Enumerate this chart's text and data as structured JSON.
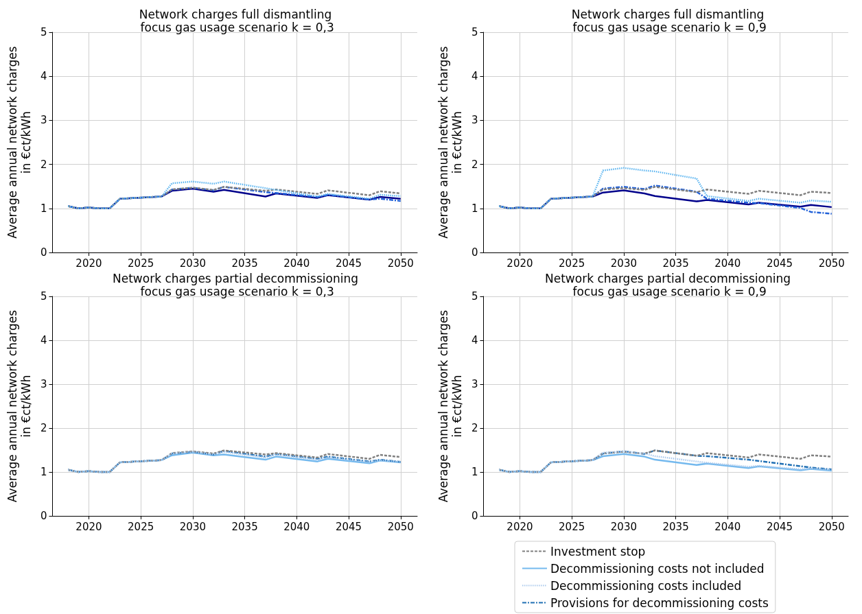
{
  "chart_data": [
    {
      "type": "line",
      "title": "Network charges full dismantling\n focus gas usage scenario k = 0,3",
      "ylabel": "Average annual network charges\nin €ct/kWh",
      "x": [
        2018,
        2019,
        2020,
        2021,
        2022,
        2023,
        2027,
        2028,
        2030,
        2032,
        2033,
        2037,
        2038,
        2042,
        2043,
        2047,
        2048,
        2050
      ],
      "xlim": [
        2016.5,
        2051.6
      ],
      "xticks": [
        2020,
        2025,
        2030,
        2035,
        2040,
        2045,
        2050
      ],
      "ylim": [
        0,
        5
      ],
      "yticks": [
        0,
        1,
        2,
        3,
        4,
        5
      ],
      "grid": true,
      "legend": false,
      "marker": "none",
      "series": [
        {
          "color": "#808080",
          "line_style": "dashed",
          "values": [
            1.05,
            1.0,
            1.02,
            1.0,
            1.0,
            1.22,
            1.27,
            1.43,
            1.47,
            1.42,
            1.49,
            1.4,
            1.43,
            1.33,
            1.41,
            1.3,
            1.39,
            1.34
          ]
        },
        {
          "color": "#00008b",
          "line_style": "solid",
          "values": [
            1.05,
            1.0,
            1.02,
            1.0,
            1.0,
            1.22,
            1.27,
            1.4,
            1.45,
            1.38,
            1.42,
            1.27,
            1.34,
            1.24,
            1.3,
            1.2,
            1.26,
            1.22
          ]
        },
        {
          "color": "#5ab4f0",
          "line_style": "dotted",
          "values": [
            1.05,
            1.0,
            1.02,
            1.0,
            1.0,
            1.22,
            1.27,
            1.57,
            1.61,
            1.56,
            1.61,
            1.46,
            1.42,
            1.27,
            1.33,
            1.22,
            1.31,
            1.28
          ]
        },
        {
          "color": "#2060d8",
          "line_style": "dashdot",
          "values": [
            1.05,
            1.0,
            1.02,
            1.0,
            1.0,
            1.22,
            1.27,
            1.43,
            1.47,
            1.41,
            1.49,
            1.37,
            1.35,
            1.26,
            1.31,
            1.2,
            1.22,
            1.17
          ]
        }
      ]
    },
    {
      "type": "line",
      "title": "Network charges full dismantling\n focus gas usage scenario k = 0,9",
      "ylabel": "Average annual network charges\nin €ct/kWh",
      "x": [
        2018,
        2019,
        2020,
        2021,
        2022,
        2023,
        2027,
        2028,
        2030,
        2032,
        2033,
        2037,
        2038,
        2042,
        2043,
        2047,
        2048,
        2050
      ],
      "xlim": [
        2016.5,
        2051.6
      ],
      "xticks": [
        2020,
        2025,
        2030,
        2035,
        2040,
        2045,
        2050
      ],
      "ylim": [
        0,
        5
      ],
      "yticks": [
        0,
        1,
        2,
        3,
        4,
        5
      ],
      "grid": true,
      "legend": false,
      "marker": "none",
      "series": [
        {
          "color": "#808080",
          "line_style": "dashed",
          "values": [
            1.05,
            1.0,
            1.02,
            1.0,
            1.0,
            1.22,
            1.27,
            1.43,
            1.46,
            1.42,
            1.49,
            1.37,
            1.43,
            1.33,
            1.4,
            1.3,
            1.38,
            1.35
          ]
        },
        {
          "color": "#00008b",
          "line_style": "solid",
          "values": [
            1.05,
            1.0,
            1.02,
            1.0,
            1.0,
            1.22,
            1.27,
            1.36,
            1.41,
            1.34,
            1.28,
            1.16,
            1.19,
            1.09,
            1.13,
            1.04,
            1.08,
            1.03
          ]
        },
        {
          "color": "#5ab4f0",
          "line_style": "dotted",
          "values": [
            1.05,
            1.0,
            1.02,
            1.0,
            1.0,
            1.22,
            1.27,
            1.86,
            1.92,
            1.86,
            1.84,
            1.68,
            1.28,
            1.17,
            1.22,
            1.13,
            1.18,
            1.15
          ]
        },
        {
          "color": "#2060d8",
          "line_style": "dashdot",
          "values": [
            1.05,
            1.0,
            1.02,
            1.0,
            1.0,
            1.22,
            1.27,
            1.45,
            1.49,
            1.44,
            1.52,
            1.38,
            1.22,
            1.13,
            1.12,
            1.01,
            0.92,
            0.88
          ]
        }
      ]
    },
    {
      "type": "line",
      "title": "Network charges partial decommissioning\n focus gas usage scenario k = 0,3",
      "ylabel": "Average annual network charges\nin €ct/kWh",
      "x": [
        2018,
        2019,
        2020,
        2021,
        2022,
        2023,
        2027,
        2028,
        2030,
        2032,
        2033,
        2037,
        2038,
        2042,
        2043,
        2047,
        2048,
        2050
      ],
      "xlim": [
        2016.5,
        2051.6
      ],
      "xticks": [
        2020,
        2025,
        2030,
        2035,
        2040,
        2045,
        2050
      ],
      "ylim": [
        0,
        5
      ],
      "yticks": [
        0,
        1,
        2,
        3,
        4,
        5
      ],
      "grid": true,
      "legend": false,
      "marker": "none",
      "series": [
        {
          "color": "#808080",
          "line_style": "dashed",
          "values": [
            1.05,
            1.0,
            1.02,
            1.0,
            1.0,
            1.22,
            1.27,
            1.43,
            1.47,
            1.42,
            1.49,
            1.4,
            1.43,
            1.33,
            1.41,
            1.3,
            1.39,
            1.34
          ]
        },
        {
          "color": "#74b9ee",
          "line_style": "solid",
          "values": [
            1.05,
            1.0,
            1.02,
            1.0,
            1.0,
            1.22,
            1.27,
            1.38,
            1.44,
            1.38,
            1.4,
            1.28,
            1.35,
            1.24,
            1.3,
            1.2,
            1.26,
            1.22
          ]
        },
        {
          "color": "#a8c8ec",
          "line_style": "dotted",
          "values": [
            1.05,
            1.0,
            1.02,
            1.0,
            1.0,
            1.22,
            1.27,
            1.42,
            1.46,
            1.4,
            1.46,
            1.33,
            1.4,
            1.28,
            1.33,
            1.23,
            1.27,
            1.23
          ]
        },
        {
          "color": "#1f6fb4",
          "line_style": "dashdot",
          "values": [
            1.05,
            1.0,
            1.02,
            1.0,
            1.0,
            1.22,
            1.27,
            1.42,
            1.46,
            1.4,
            1.48,
            1.35,
            1.41,
            1.3,
            1.35,
            1.24,
            1.28,
            1.23
          ]
        }
      ]
    },
    {
      "type": "line",
      "title": "Network charges partial decommissioning\n focus gas usage scenario k = 0,9",
      "ylabel": "Average annual network charges\nin €ct/kWh",
      "x": [
        2018,
        2019,
        2020,
        2021,
        2022,
        2023,
        2027,
        2028,
        2030,
        2032,
        2033,
        2037,
        2038,
        2042,
        2043,
        2047,
        2048,
        2050
      ],
      "xlim": [
        2016.5,
        2051.6
      ],
      "xticks": [
        2020,
        2025,
        2030,
        2035,
        2040,
        2045,
        2050
      ],
      "ylim": [
        0,
        5
      ],
      "yticks": [
        0,
        1,
        2,
        3,
        4,
        5
      ],
      "grid": true,
      "legend": "bottom",
      "marker": "none",
      "series": [
        {
          "name": "Investment stop",
          "color": "#808080",
          "line_style": "dashed",
          "values": [
            1.05,
            1.0,
            1.02,
            1.0,
            1.0,
            1.22,
            1.27,
            1.43,
            1.46,
            1.42,
            1.49,
            1.37,
            1.43,
            1.33,
            1.4,
            1.3,
            1.38,
            1.35
          ]
        },
        {
          "name": "Decommissioning costs not included",
          "color": "#74b9ee",
          "line_style": "solid",
          "values": [
            1.05,
            1.0,
            1.02,
            1.0,
            1.0,
            1.22,
            1.27,
            1.36,
            1.41,
            1.35,
            1.28,
            1.16,
            1.19,
            1.09,
            1.13,
            1.04,
            1.07,
            1.03
          ]
        },
        {
          "name": "Decommissioning costs included",
          "color": "#a8c8ec",
          "line_style": "dotted",
          "values": [
            1.05,
            1.0,
            1.02,
            1.0,
            1.0,
            1.22,
            1.27,
            1.44,
            1.47,
            1.42,
            1.36,
            1.24,
            1.21,
            1.12,
            1.14,
            1.06,
            1.08,
            1.05
          ]
        },
        {
          "name": "Provisions for decommissioning costs",
          "color": "#1f6fb4",
          "line_style": "dashdot",
          "values": [
            1.05,
            1.0,
            1.02,
            1.0,
            1.0,
            1.22,
            1.27,
            1.42,
            1.47,
            1.41,
            1.49,
            1.37,
            1.36,
            1.28,
            1.25,
            1.13,
            1.1,
            1.06
          ]
        }
      ]
    }
  ]
}
